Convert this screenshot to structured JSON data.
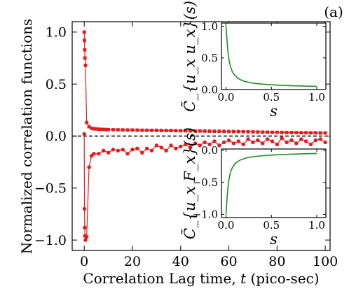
{
  "chart_data": [
    {
      "type": "line",
      "panel_label": "(a)",
      "xlabel_prefix": "Correlation Lag time,",
      "xlabel_var": "t",
      "xlabel_suffix": "(pico-sec)",
      "ylabel": "Normalized correlation functions",
      "xlim": [
        -5,
        102
      ],
      "ylim": [
        -1.1,
        1.1
      ],
      "xticks": [
        0,
        20,
        40,
        60,
        80,
        100
      ],
      "yticks": [
        -1.0,
        -0.5,
        0.0,
        0.5,
        1.0
      ],
      "reference_line": {
        "y": 0.0,
        "style": "dashed",
        "color": "#000000"
      },
      "series": [
        {
          "color": "#e41a1c",
          "marker": "square",
          "x": [
            0,
            0.1,
            0.2,
            0.3,
            0.5,
            1,
            2,
            3,
            4,
            5,
            6,
            7,
            8,
            9,
            10,
            12,
            14,
            16,
            18,
            20,
            22,
            24,
            26,
            28,
            30,
            32,
            34,
            36,
            38,
            40,
            42,
            44,
            46,
            48,
            50,
            52,
            54,
            56,
            58,
            60,
            62,
            64,
            66,
            68,
            70,
            72,
            74,
            76,
            78,
            80,
            82,
            84,
            86,
            88,
            90,
            92,
            94,
            96,
            98,
            100
          ],
          "y": [
            1.0,
            0.92,
            0.83,
            0.75,
            0.68,
            0.13,
            0.09,
            0.075,
            0.07,
            0.068,
            0.066,
            0.065,
            0.064,
            0.063,
            0.062,
            0.061,
            0.06,
            0.059,
            0.058,
            0.058,
            0.057,
            0.056,
            0.056,
            0.055,
            0.055,
            0.054,
            0.053,
            0.053,
            0.052,
            0.051,
            0.051,
            0.05,
            0.049,
            0.049,
            0.048,
            0.047,
            0.046,
            0.046,
            0.045,
            0.044,
            0.043,
            0.043,
            0.042,
            0.041,
            0.04,
            0.039,
            0.038,
            0.037,
            0.036,
            0.036,
            0.035,
            0.034,
            0.034,
            0.033,
            0.032,
            0.032,
            0.031,
            0.031,
            0.03,
            0.03
          ]
        },
        {
          "color": "#e41a1c",
          "marker": "circle",
          "x": [
            0,
            0.1,
            0.2,
            0.3,
            0.5,
            1,
            2,
            3,
            4,
            6,
            8,
            10,
            12,
            14,
            16,
            18,
            20,
            22,
            24,
            26,
            28,
            30,
            32,
            34,
            36,
            38,
            40,
            42,
            44,
            46,
            48,
            50,
            52,
            54,
            56,
            58,
            60,
            62,
            64,
            66,
            68,
            70,
            72,
            74,
            76,
            78,
            80,
            82,
            84,
            86,
            88,
            90,
            92,
            94,
            96,
            98,
            100
          ],
          "y": [
            0.02,
            -0.7,
            -0.88,
            -0.96,
            -1.0,
            -0.97,
            -0.3,
            -0.19,
            -0.17,
            -0.17,
            -0.14,
            -0.16,
            -0.13,
            -0.14,
            -0.13,
            -0.17,
            -0.13,
            -0.12,
            -0.16,
            -0.12,
            -0.14,
            -0.09,
            -0.11,
            -0.14,
            -0.09,
            -0.12,
            -0.1,
            -0.08,
            -0.11,
            -0.07,
            -0.09,
            -0.06,
            -0.08,
            -0.05,
            -0.09,
            -0.06,
            -0.04,
            -0.07,
            -0.05,
            -0.08,
            -0.03,
            -0.06,
            -0.04,
            -0.07,
            -0.03,
            -0.05,
            -0.08,
            -0.02,
            -0.06,
            -0.04,
            -0.07,
            -0.03,
            -0.05,
            -0.08,
            -0.04,
            -0.03,
            -0.06
          ]
        }
      ]
    },
    {
      "type": "line",
      "inset": "top",
      "ylabel": "C̃_{u_x u_x}(s)",
      "xlabel": "s",
      "xlim": [
        -0.05,
        1.1
      ],
      "ylim": [
        0,
        1.05
      ],
      "xticks": [
        0.0,
        0.5,
        1.0
      ],
      "yticks": [
        0.0,
        0.5,
        1.0
      ],
      "series": [
        {
          "color": "#228B22",
          "x": [
            0,
            0.01,
            0.02,
            0.03,
            0.04,
            0.05,
            0.07,
            0.1,
            0.13,
            0.16,
            0.2,
            0.25,
            0.3,
            0.4,
            0.5,
            0.6,
            0.7,
            0.8,
            0.9,
            1.0
          ],
          "y": [
            1.0,
            0.8,
            0.62,
            0.5,
            0.42,
            0.36,
            0.28,
            0.22,
            0.18,
            0.155,
            0.13,
            0.115,
            0.1,
            0.085,
            0.075,
            0.068,
            0.062,
            0.057,
            0.053,
            0.05
          ]
        }
      ]
    },
    {
      "type": "line",
      "inset": "bottom",
      "ylabel": "C̃_{u_x F_x}(s)",
      "xlabel": "s",
      "xlim": [
        -0.05,
        1.1
      ],
      "ylim": [
        -1.05,
        0.02
      ],
      "xticks": [
        0.0,
        0.5,
        1.0
      ],
      "yticks": [
        -1.0,
        -0.5,
        0.0
      ],
      "series": [
        {
          "color": "#228B22",
          "x": [
            0,
            0.01,
            0.02,
            0.03,
            0.04,
            0.05,
            0.07,
            0.1,
            0.13,
            0.16,
            0.2,
            0.25,
            0.3,
            0.4,
            0.5,
            0.6,
            0.7,
            0.8,
            0.9,
            1.0
          ],
          "y": [
            -1.0,
            -0.78,
            -0.6,
            -0.48,
            -0.4,
            -0.34,
            -0.27,
            -0.21,
            -0.175,
            -0.15,
            -0.13,
            -0.11,
            -0.1,
            -0.085,
            -0.075,
            -0.068,
            -0.062,
            -0.057,
            -0.053,
            -0.05
          ]
        }
      ]
    }
  ]
}
